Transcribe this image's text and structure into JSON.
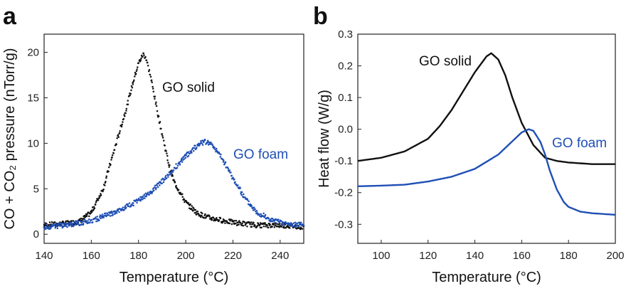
{
  "chart_data": [
    {
      "panel": "a",
      "type": "scatter",
      "title": "",
      "xlabel": "Temperature (°C)",
      "ylabel": "CO + CO₂ pressure (nTorr/g)",
      "xlim": [
        140,
        250
      ],
      "ylim": [
        -1,
        22
      ],
      "xticks": [
        140,
        160,
        180,
        200,
        220,
        240
      ],
      "yticks": [
        0,
        5,
        10,
        15,
        20
      ],
      "grid": false,
      "series": [
        {
          "name": "GO solid",
          "color": "#111111",
          "label_text": "GO solid",
          "x": [
            140,
            150,
            155,
            160,
            165,
            170,
            175,
            178,
            180,
            182,
            183,
            185,
            188,
            190,
            193,
            195,
            200,
            205,
            210,
            220,
            230,
            240,
            250
          ],
          "y": [
            1.0,
            1.2,
            1.4,
            2.4,
            5.0,
            9.5,
            14.0,
            17.0,
            18.8,
            19.8,
            19.5,
            17.5,
            13.5,
            11.0,
            7.5,
            5.8,
            3.5,
            2.3,
            1.8,
            1.3,
            1.0,
            1.0,
            0.8
          ]
        },
        {
          "name": "GO foam",
          "color": "#1f4fb5",
          "label_text": "GO foam",
          "x": [
            140,
            150,
            160,
            170,
            180,
            185,
            190,
            195,
            200,
            205,
            208,
            210,
            212,
            215,
            220,
            225,
            230,
            235,
            240,
            245,
            250
          ],
          "y": [
            0.8,
            1.0,
            1.5,
            2.4,
            3.7,
            4.6,
            5.8,
            7.2,
            8.6,
            9.8,
            10.2,
            10.1,
            9.6,
            8.5,
            6.2,
            4.0,
            2.5,
            1.7,
            1.3,
            1.1,
            1.0
          ]
        }
      ]
    },
    {
      "panel": "b",
      "type": "line",
      "title": "",
      "xlabel": "Temperature (°C)",
      "ylabel": "Heat flow (W/g)",
      "xlim": [
        90,
        200
      ],
      "ylim": [
        -0.36,
        0.3
      ],
      "xticks": [
        100,
        120,
        140,
        160,
        180,
        200
      ],
      "yticks": [
        -0.3,
        -0.2,
        -0.1,
        0.0,
        0.1,
        0.2,
        0.3
      ],
      "ytick_labels": [
        "-0.3",
        "-0.2",
        "-0.1",
        "0.0",
        "0.1",
        "0.2",
        "0.3"
      ],
      "grid": false,
      "series": [
        {
          "name": "GO solid",
          "color": "#111111",
          "label_text": "GO solid",
          "x": [
            90,
            100,
            110,
            120,
            125,
            130,
            135,
            140,
            145,
            147,
            150,
            153,
            156,
            160,
            165,
            170,
            175,
            180,
            190,
            200
          ],
          "y": [
            -0.1,
            -0.09,
            -0.07,
            -0.03,
            0.01,
            0.06,
            0.12,
            0.18,
            0.23,
            0.24,
            0.22,
            0.17,
            0.1,
            0.02,
            -0.05,
            -0.09,
            -0.1,
            -0.105,
            -0.11,
            -0.11
          ]
        },
        {
          "name": "GO foam",
          "color": "#1f4fb5",
          "label_text": "GO foam",
          "x": [
            90,
            100,
            110,
            120,
            130,
            140,
            150,
            155,
            160,
            163,
            165,
            168,
            170,
            172,
            175,
            178,
            180,
            185,
            190,
            200
          ],
          "y": [
            -0.18,
            -0.178,
            -0.175,
            -0.165,
            -0.15,
            -0.125,
            -0.08,
            -0.045,
            -0.01,
            0.0,
            -0.005,
            -0.04,
            -0.08,
            -0.13,
            -0.19,
            -0.23,
            -0.245,
            -0.26,
            -0.265,
            -0.27
          ]
        }
      ]
    }
  ]
}
